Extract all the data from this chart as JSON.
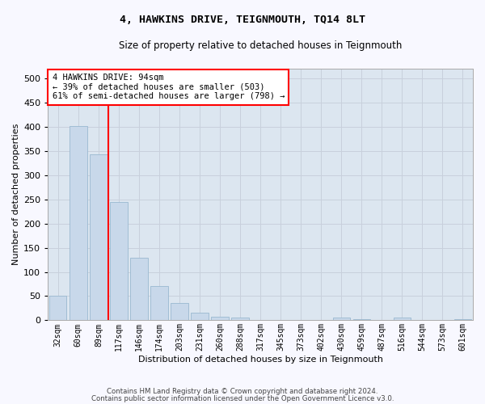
{
  "title": "4, HAWKINS DRIVE, TEIGNMOUTH, TQ14 8LT",
  "subtitle": "Size of property relative to detached houses in Teignmouth",
  "xlabel": "Distribution of detached houses by size in Teignmouth",
  "ylabel": "Number of detached properties",
  "categories": [
    "32sqm",
    "60sqm",
    "89sqm",
    "117sqm",
    "146sqm",
    "174sqm",
    "203sqm",
    "231sqm",
    "260sqm",
    "288sqm",
    "317sqm",
    "345sqm",
    "373sqm",
    "402sqm",
    "430sqm",
    "459sqm",
    "487sqm",
    "516sqm",
    "544sqm",
    "573sqm",
    "601sqm"
  ],
  "values": [
    50,
    402,
    343,
    245,
    130,
    70,
    35,
    15,
    7,
    6,
    1,
    0,
    0,
    0,
    5,
    3,
    0,
    5,
    0,
    0,
    3
  ],
  "bar_color": "#c8d8ea",
  "bar_edge_color": "#9ab8d0",
  "grid_color": "#c8d0dc",
  "vline_color": "red",
  "vline_index": 2,
  "annotation_text": "4 HAWKINS DRIVE: 94sqm\n← 39% of detached houses are smaller (503)\n61% of semi-detached houses are larger (798) →",
  "annotation_box_color": "white",
  "annotation_box_edge": "red",
  "ylim": [
    0,
    520
  ],
  "yticks": [
    0,
    50,
    100,
    150,
    200,
    250,
    300,
    350,
    400,
    450,
    500
  ],
  "fig_bg_color": "#f8f8ff",
  "plot_bg_color": "#dce6f0",
  "footer1": "Contains HM Land Registry data © Crown copyright and database right 2024.",
  "footer2": "Contains public sector information licensed under the Open Government Licence v3.0."
}
